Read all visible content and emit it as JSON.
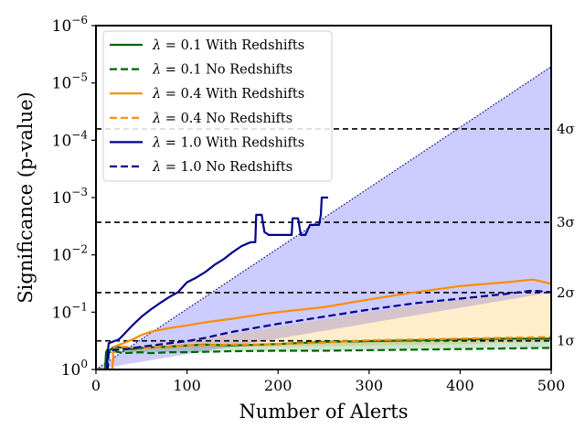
{
  "chart_data": {
    "type": "line",
    "title": "",
    "xlabel": "Number of Alerts",
    "ylabel": "Significance (p-value)",
    "xlim": [
      0,
      500
    ],
    "ylim": [
      1e-06,
      1
    ],
    "yscale": "log",
    "y_inverted": true,
    "x_ticks": [
      0,
      100,
      200,
      300,
      400,
      500
    ],
    "x_tick_labels": [
      "0",
      "100",
      "200",
      "300",
      "400",
      "500"
    ],
    "y_ticks": [
      1e-06,
      1e-05,
      0.0001,
      0.001,
      0.01,
      0.1,
      1
    ],
    "y_tick_labels": [
      {
        "base": "10",
        "exp": "−6"
      },
      {
        "base": "10",
        "exp": "−5"
      },
      {
        "base": "10",
        "exp": "−4"
      },
      {
        "base": "10",
        "exp": "−3"
      },
      {
        "base": "10",
        "exp": "−2"
      },
      {
        "base": "10",
        "exp": "−1"
      },
      {
        "base": "10",
        "exp": "0"
      }
    ],
    "sigma_lines": [
      {
        "label": "1σ",
        "p": 0.317
      },
      {
        "label": "2σ",
        "p": 0.0455
      },
      {
        "label": "3σ",
        "p": 0.0027
      },
      {
        "label": "4σ",
        "p": 6.33e-05
      }
    ],
    "legend_position": "top-left",
    "series": [
      {
        "name": "λ = 0.1 With Redshifts",
        "lambda": "0.1",
        "suffix": "With Redshifts",
        "color": "#006400",
        "dash": "solid",
        "x": [
          0,
          10,
          11,
          12,
          15,
          20,
          30,
          40,
          50,
          60,
          80,
          100,
          120,
          150,
          200,
          250,
          300,
          350,
          400,
          450,
          500
        ],
        "y": [
          1,
          1,
          0.5,
          0.46,
          0.46,
          0.4,
          0.42,
          0.44,
          0.42,
          0.41,
          0.4,
          0.38,
          0.37,
          0.38,
          0.36,
          0.33,
          0.32,
          0.31,
          0.3,
          0.29,
          0.29
        ]
      },
      {
        "name": "λ = 0.1 No Redshifts",
        "lambda": "0.1",
        "suffix": "No Redshifts",
        "color": "#006400",
        "dash": "dashed",
        "x": [
          0,
          10,
          12,
          15,
          20,
          30,
          50,
          60,
          80,
          100,
          150,
          200,
          250,
          300,
          350,
          400,
          450,
          500
        ],
        "y": [
          1,
          1,
          0.55,
          0.5,
          0.48,
          0.52,
          0.5,
          0.52,
          0.5,
          0.5,
          0.48,
          0.47,
          0.47,
          0.46,
          0.45,
          0.44,
          0.43,
          0.42
        ]
      },
      {
        "name": "λ = 0.4 With Redshifts",
        "lambda": "0.4",
        "suffix": "With Redshifts",
        "color": "#ff8c00",
        "dash": "solid",
        "x": [
          0,
          18,
          19,
          20,
          30,
          40,
          50,
          60,
          80,
          100,
          120,
          150,
          180,
          200,
          250,
          300,
          350,
          400,
          450,
          480,
          500
        ],
        "y": [
          1,
          1,
          0.5,
          0.4,
          0.35,
          0.3,
          0.25,
          0.22,
          0.19,
          0.17,
          0.15,
          0.13,
          0.11,
          0.1,
          0.082,
          0.06,
          0.045,
          0.035,
          0.03,
          0.027,
          0.032
        ]
      },
      {
        "name": "λ = 0.4 No Redshifts",
        "lambda": "0.4",
        "suffix": "No Redshifts",
        "color": "#ff8c00",
        "dash": "dashed",
        "x": [
          0,
          18,
          20,
          30,
          50,
          80,
          100,
          150,
          200,
          250,
          300,
          350,
          400,
          450,
          500
        ],
        "y": [
          1,
          1,
          0.45,
          0.4,
          0.42,
          0.4,
          0.38,
          0.37,
          0.36,
          0.34,
          0.31,
          0.3,
          0.29,
          0.28,
          0.27
        ]
      },
      {
        "name": "λ = 1.0 With Redshifts",
        "lambda": "1.0",
        "suffix": "With Redshifts",
        "color": "#00008b",
        "dash": "solid",
        "x": [
          0,
          12,
          13,
          14,
          20,
          25,
          30,
          40,
          50,
          60,
          70,
          80,
          90,
          100,
          110,
          120,
          130,
          140,
          150,
          160,
          170,
          175,
          176,
          182,
          185,
          190,
          200,
          210,
          215,
          216,
          222,
          225,
          230,
          235,
          240,
          245,
          247,
          248,
          255
        ],
        "y": [
          1,
          1,
          0.5,
          0.35,
          0.32,
          0.3,
          0.25,
          0.17,
          0.12,
          0.09,
          0.07,
          0.055,
          0.045,
          0.03,
          0.025,
          0.02,
          0.015,
          0.012,
          0.009,
          0.007,
          0.006,
          0.006,
          0.002,
          0.002,
          0.004,
          0.0045,
          0.0045,
          0.0045,
          0.0045,
          0.0023,
          0.0023,
          0.0045,
          0.0045,
          0.003,
          0.003,
          0.003,
          0.002,
          0.001,
          0.001
        ]
      },
      {
        "name": "λ = 1.0 No Redshifts",
        "lambda": "1.0",
        "suffix": "No Redshifts",
        "color": "#00008b",
        "dash": "dashed",
        "x": [
          0,
          13,
          14,
          20,
          30,
          50,
          80,
          100,
          120,
          150,
          200,
          250,
          300,
          350,
          400,
          450,
          480,
          500
        ],
        "y": [
          1,
          1,
          0.5,
          0.45,
          0.45,
          0.4,
          0.35,
          0.32,
          0.28,
          0.22,
          0.16,
          0.12,
          0.09,
          0.07,
          0.058,
          0.048,
          0.042,
          0.045
        ]
      }
    ],
    "bands": [
      {
        "color": "#0000ff",
        "opacity": 0.2,
        "x": [
          0,
          500
        ],
        "upper_y": [
          1,
          5.2e-06
        ],
        "lower_y": [
          1,
          0.045
        ]
      },
      {
        "color": "#ffa500",
        "opacity": 0.2,
        "x": [
          0,
          20,
          100,
          200,
          300,
          400,
          500
        ],
        "upper_y": [
          1,
          0.5,
          0.32,
          0.18,
          0.1,
          0.06,
          0.045
        ],
        "lower_y": [
          1,
          0.5,
          0.42,
          0.4,
          0.38,
          0.36,
          0.33
        ]
      },
      {
        "color": "#008000",
        "opacity": 0.2,
        "x": [
          0,
          20,
          100,
          200,
          300,
          400,
          500
        ],
        "upper_y": [
          1,
          0.46,
          0.4,
          0.36,
          0.32,
          0.3,
          0.29
        ],
        "lower_y": [
          1,
          0.5,
          0.5,
          0.47,
          0.46,
          0.44,
          0.42
        ]
      }
    ],
    "envelope_line": {
      "color": "#00008b",
      "dash": "dotted",
      "x": [
        0,
        500
      ],
      "y": [
        1,
        5.2e-06
      ]
    }
  }
}
